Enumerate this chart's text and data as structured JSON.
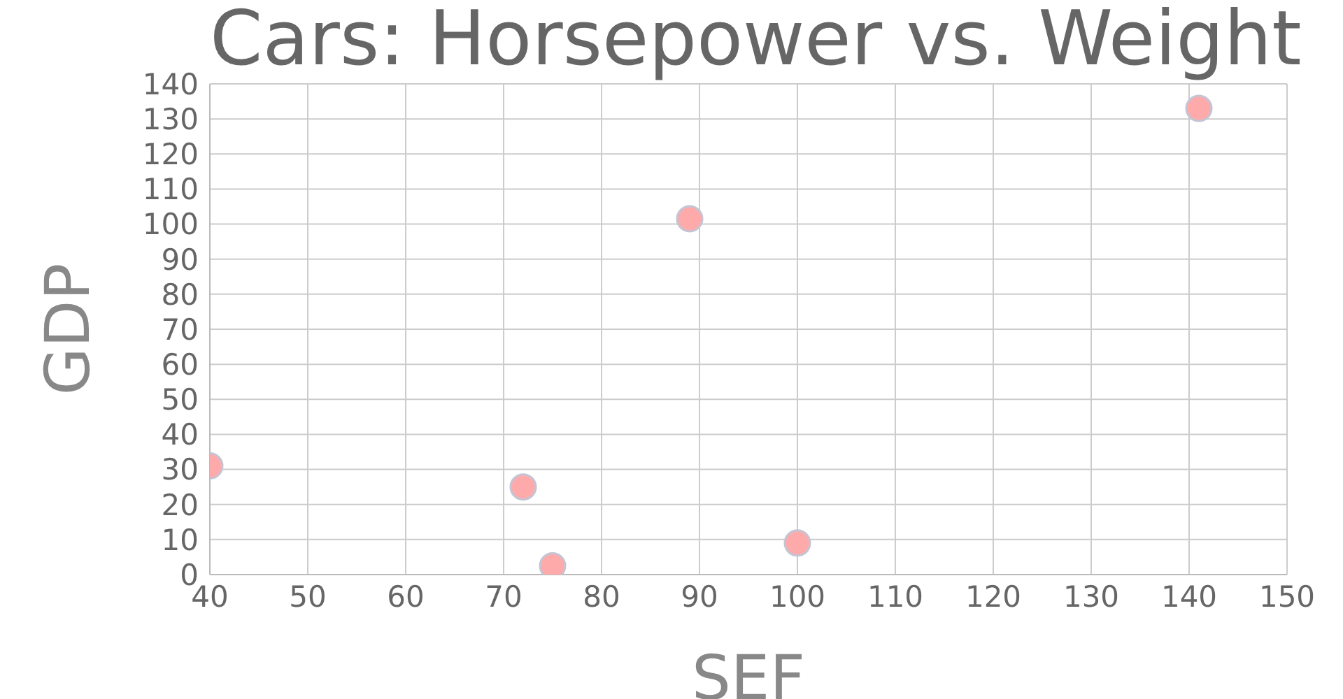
{
  "chart_data": {
    "type": "scatter",
    "title": "Cars: Horsepower vs. Weight",
    "xlabel": "SEF",
    "ylabel": "GDP",
    "x": [
      40,
      72,
      75,
      89,
      100,
      141
    ],
    "values": [
      31,
      25,
      2.5,
      101.5,
      9,
      133
    ],
    "color": "#ffaaaa",
    "marker": "circle",
    "grid": true,
    "legend": false,
    "xlim": [
      40,
      150
    ],
    "xticks": [
      40,
      50,
      60,
      70,
      80,
      90,
      100,
      110,
      120,
      130,
      140,
      150
    ],
    "ylim": [
      0,
      140
    ],
    "yticks": [
      0,
      10,
      20,
      30,
      40,
      50,
      60,
      70,
      80,
      90,
      100,
      110,
      120,
      130,
      140
    ]
  }
}
